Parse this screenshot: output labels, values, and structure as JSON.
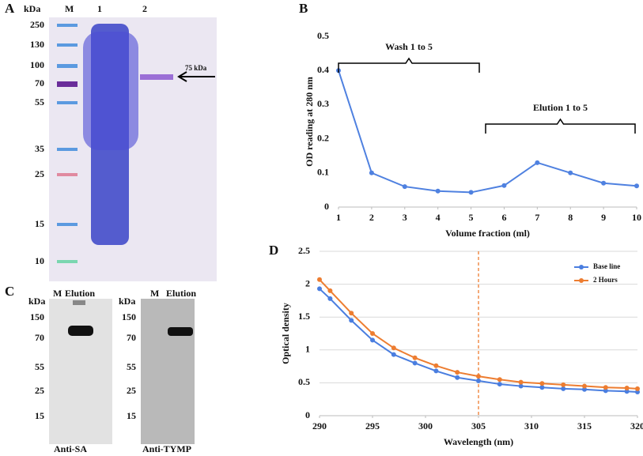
{
  "gel_a": {
    "label": "A",
    "unit": "kDa",
    "lanes": [
      "M",
      "1",
      "2"
    ],
    "markers": [
      "250",
      "130",
      "100",
      "70",
      "55",
      "35",
      "25",
      "15",
      "10"
    ],
    "annotation": "75 kDa"
  },
  "blots_c": {
    "label": "C",
    "blots": [
      {
        "unit": "kDa",
        "lanes": [
          "M",
          "Elution"
        ],
        "markers": [
          "150",
          "70",
          "55",
          "25",
          "15"
        ],
        "caption": "Anti-SA"
      },
      {
        "unit": "kDa",
        "lanes": [
          "M",
          "Elution"
        ],
        "markers": [
          "150",
          "70",
          "55",
          "25",
          "15"
        ],
        "caption": "Anti-TYMP"
      }
    ]
  },
  "chart_data": [
    {
      "type": "line",
      "label": "B",
      "xlabel": "Volume fraction (ml)",
      "ylabel": "OD reading at 280 nm",
      "x": [
        1,
        2,
        3,
        4,
        5,
        6,
        7,
        8,
        9,
        10
      ],
      "values": [
        0.4,
        0.1,
        0.06,
        0.047,
        0.043,
        0.063,
        0.13,
        0.1,
        0.07,
        0.062
      ],
      "color": "#4f81e0",
      "xlim": [
        1,
        10
      ],
      "xticks": [
        1,
        2,
        3,
        4,
        5,
        6,
        7,
        8,
        9,
        10
      ],
      "ylim": [
        0,
        0.5
      ],
      "yticks": [
        0,
        0.1,
        0.2,
        0.3,
        0.4,
        0.5
      ],
      "grid": false,
      "annotations": [
        {
          "text": "Wash 1 to 5"
        },
        {
          "text": "Elution 1 to 5"
        }
      ]
    },
    {
      "type": "line",
      "label": "D",
      "xlabel": "Wavelength (nm)",
      "ylabel": "Optical density",
      "x": [
        290,
        291,
        293,
        295,
        297,
        299,
        301,
        303,
        305,
        307,
        309,
        311,
        313,
        315,
        317,
        319,
        320
      ],
      "series": [
        {
          "name": "Base line",
          "color": "#4a7ee0",
          "values": [
            1.93,
            1.78,
            1.45,
            1.15,
            0.93,
            0.8,
            0.68,
            0.58,
            0.53,
            0.48,
            0.45,
            0.43,
            0.41,
            0.4,
            0.38,
            0.37,
            0.36
          ]
        },
        {
          "name": "2 Hours",
          "color": "#ed7d31",
          "values": [
            2.07,
            1.9,
            1.56,
            1.25,
            1.03,
            0.88,
            0.76,
            0.66,
            0.6,
            0.55,
            0.51,
            0.49,
            0.47,
            0.45,
            0.43,
            0.42,
            0.41
          ]
        }
      ],
      "xlim": [
        290,
        320
      ],
      "xticks": [
        290,
        295,
        300,
        305,
        310,
        315,
        320
      ],
      "ylim": [
        0,
        2.5
      ],
      "yticks": [
        0,
        0.5,
        1,
        1.5,
        2,
        2.5
      ],
      "grid": true,
      "vline": 305,
      "vline_color": "#ed7d31",
      "legend": "top-right"
    }
  ]
}
